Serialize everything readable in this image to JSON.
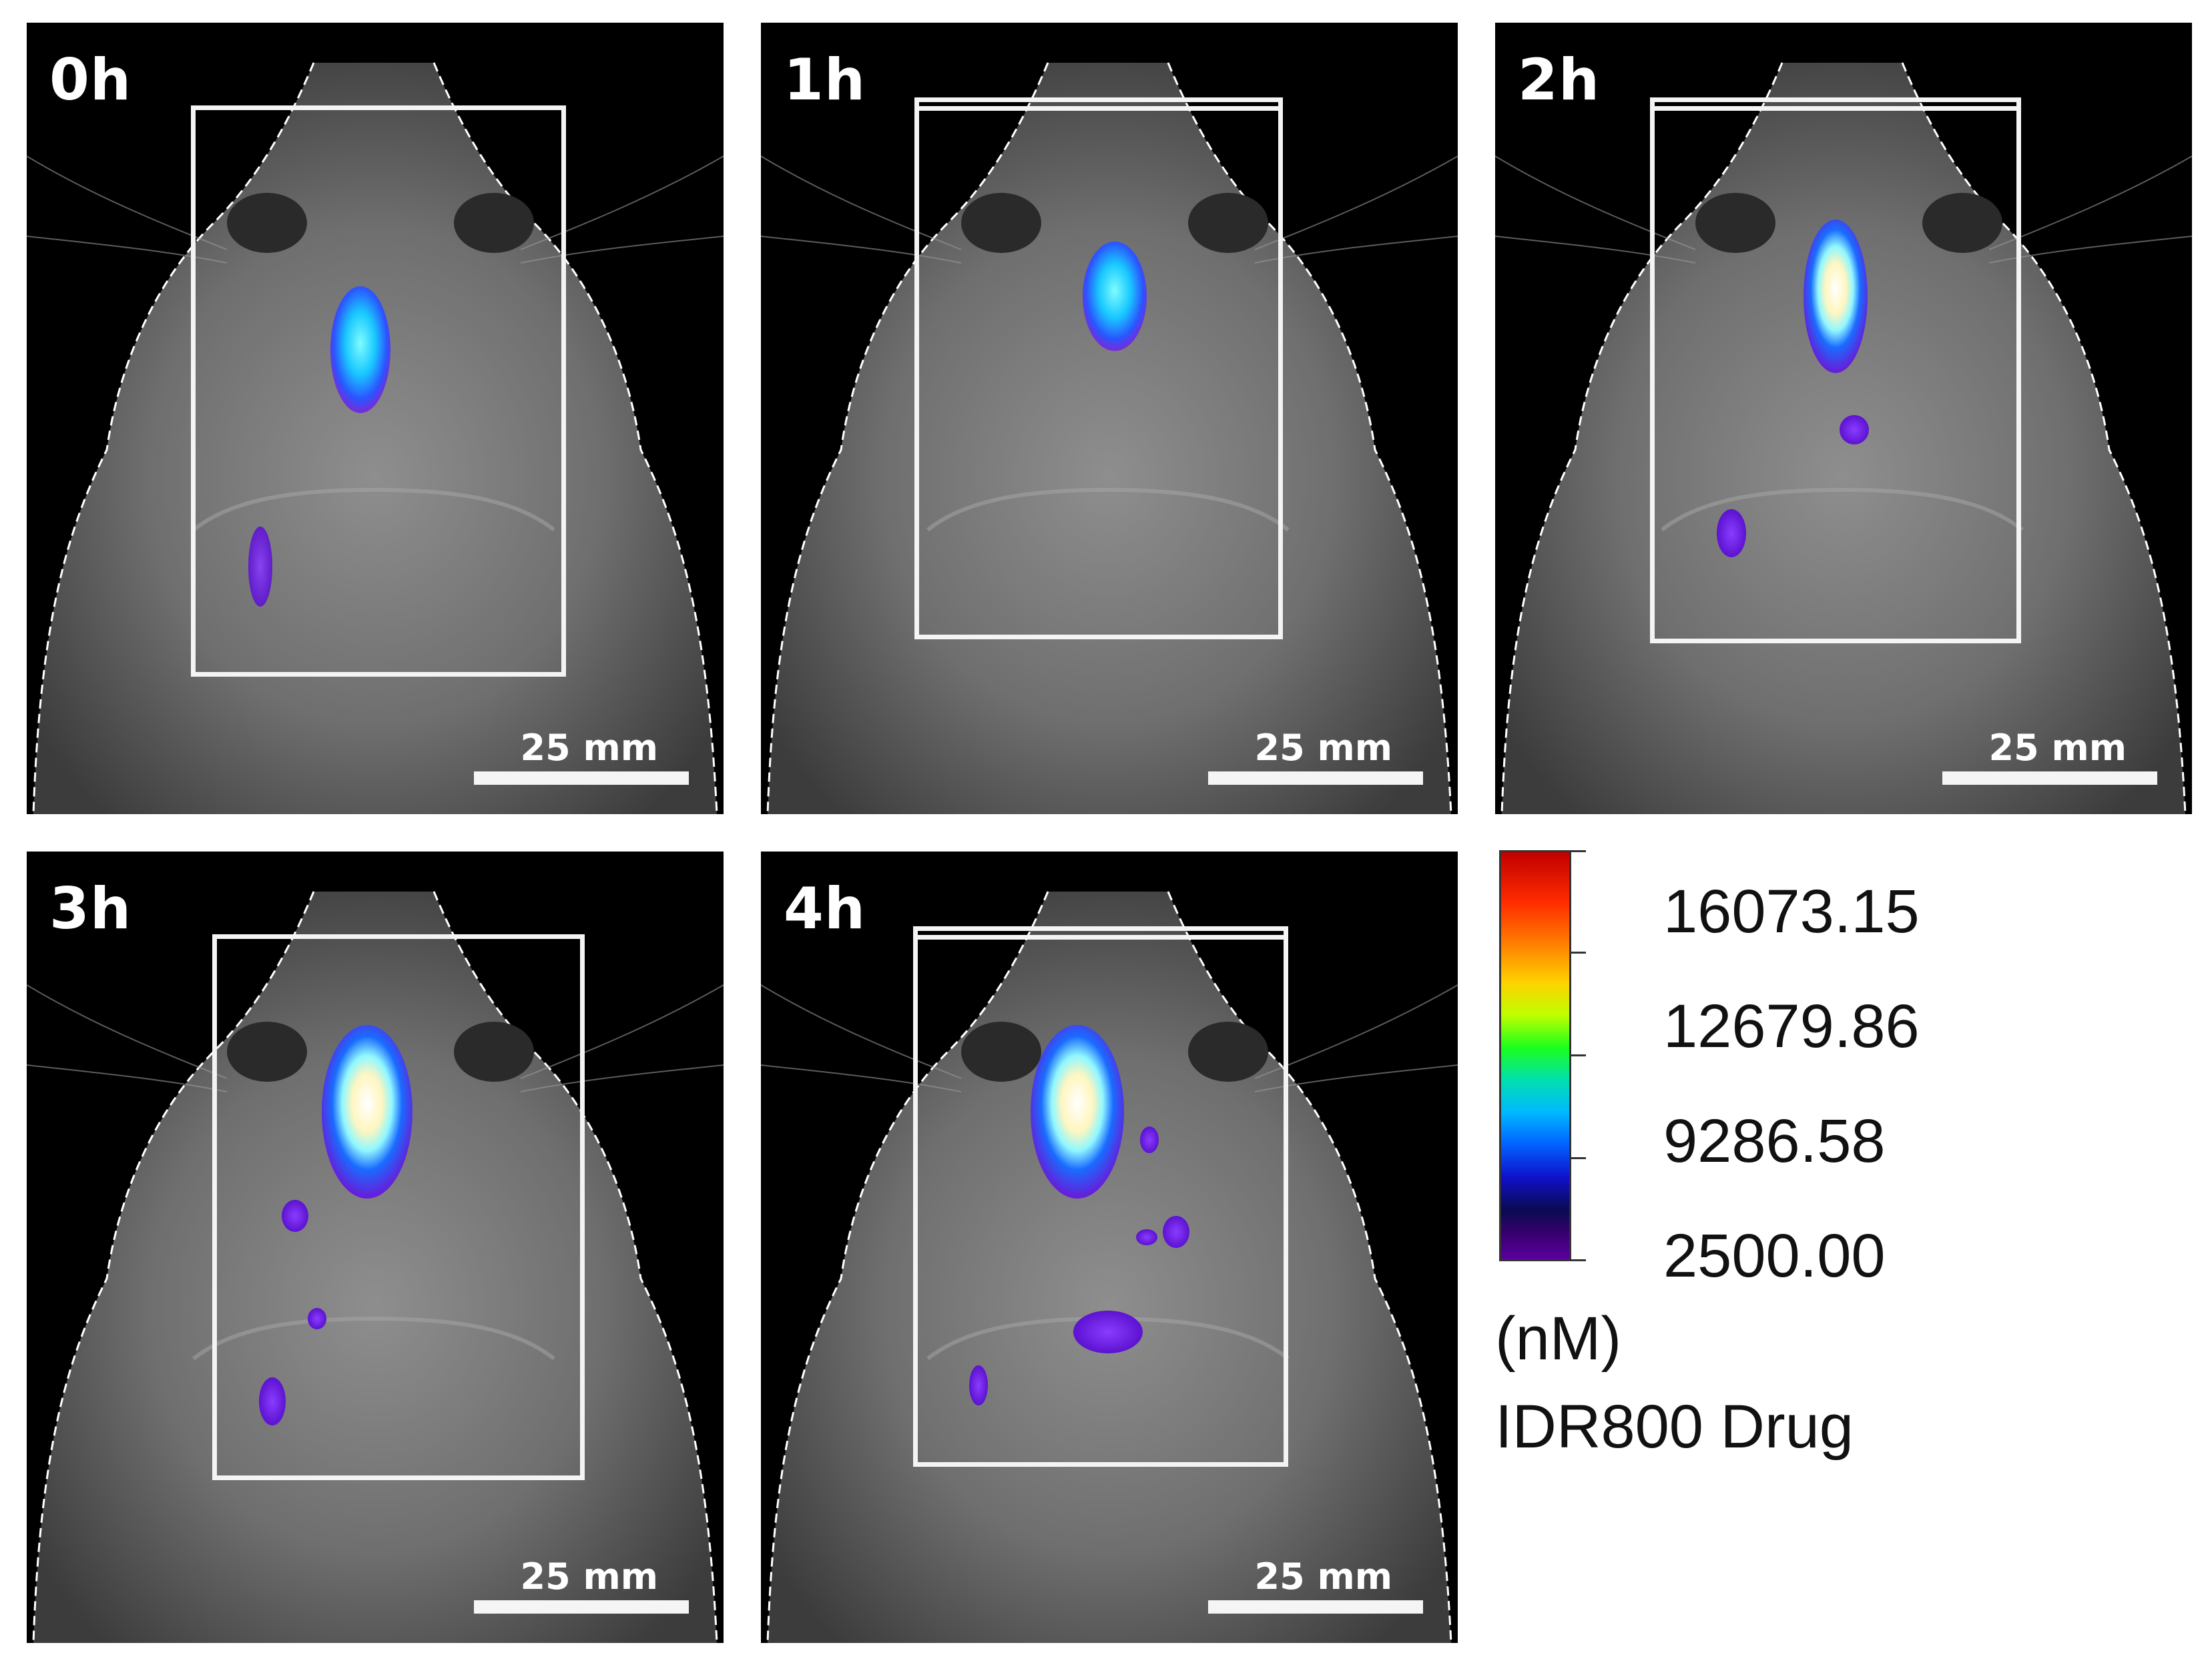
{
  "panels": [
    {
      "time": "0h",
      "scale": "25 mm"
    },
    {
      "time": "1h",
      "scale": "25 mm"
    },
    {
      "time": "2h",
      "scale": "25 mm"
    },
    {
      "time": "3h",
      "scale": "25 mm"
    },
    {
      "time": "4h",
      "scale": "25 mm"
    }
  ],
  "legend": {
    "ticks": [
      "16073.15",
      "12679.86",
      "9286.58",
      "2500.00"
    ],
    "unit": "(nM)",
    "label": "IDR800 Drug",
    "colormap": [
      "#c00000",
      "#ff7a00",
      "#ffd200",
      "#1cff1c",
      "#00b8ff",
      "#0060ff",
      "#0a0a50",
      "#5a00a0"
    ]
  }
}
